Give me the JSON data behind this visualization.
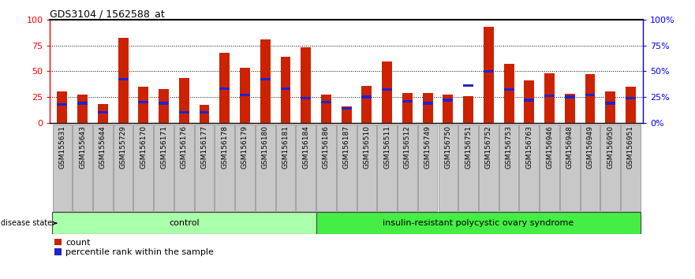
{
  "title": "GDS3104 / 1562588_at",
  "samples": [
    "GSM155631",
    "GSM155643",
    "GSM155644",
    "GSM155729",
    "GSM156170",
    "GSM156171",
    "GSM156176",
    "GSM156177",
    "GSM156178",
    "GSM156179",
    "GSM156180",
    "GSM156181",
    "GSM156184",
    "GSM156186",
    "GSM156187",
    "GSM156510",
    "GSM156511",
    "GSM156512",
    "GSM156749",
    "GSM156750",
    "GSM156751",
    "GSM156752",
    "GSM156753",
    "GSM156763",
    "GSM156946",
    "GSM156948",
    "GSM156949",
    "GSM156950",
    "GSM156951"
  ],
  "counts": [
    30,
    27,
    18,
    82,
    35,
    33,
    43,
    17,
    68,
    53,
    81,
    64,
    73,
    27,
    16,
    36,
    59,
    29,
    29,
    27,
    26,
    93,
    57,
    41,
    48,
    28,
    47,
    30,
    35
  ],
  "percentiles": [
    18,
    19,
    10,
    42,
    20,
    19,
    10,
    10,
    33,
    27,
    42,
    33,
    24,
    20,
    14,
    25,
    32,
    21,
    19,
    22,
    36,
    50,
    32,
    22,
    26,
    25,
    27,
    19,
    24
  ],
  "group_labels": [
    "control",
    "insulin-resistant polycystic ovary syndrome"
  ],
  "group_sizes": [
    13,
    16
  ],
  "bar_color": "#CC2200",
  "percentile_color": "#2222CC",
  "tick_bg_color": "#C8C8C8",
  "ylim": [
    0,
    100
  ],
  "yticks": [
    0,
    25,
    50,
    75,
    100
  ],
  "disease_state_label": "disease state",
  "legend_count": "count",
  "legend_percentile": "percentile rank within the sample",
  "ctrl_color": "#AAFFAA",
  "disease_color": "#44EE44",
  "figsize": [
    8.81,
    3.54
  ],
  "dpi": 100
}
